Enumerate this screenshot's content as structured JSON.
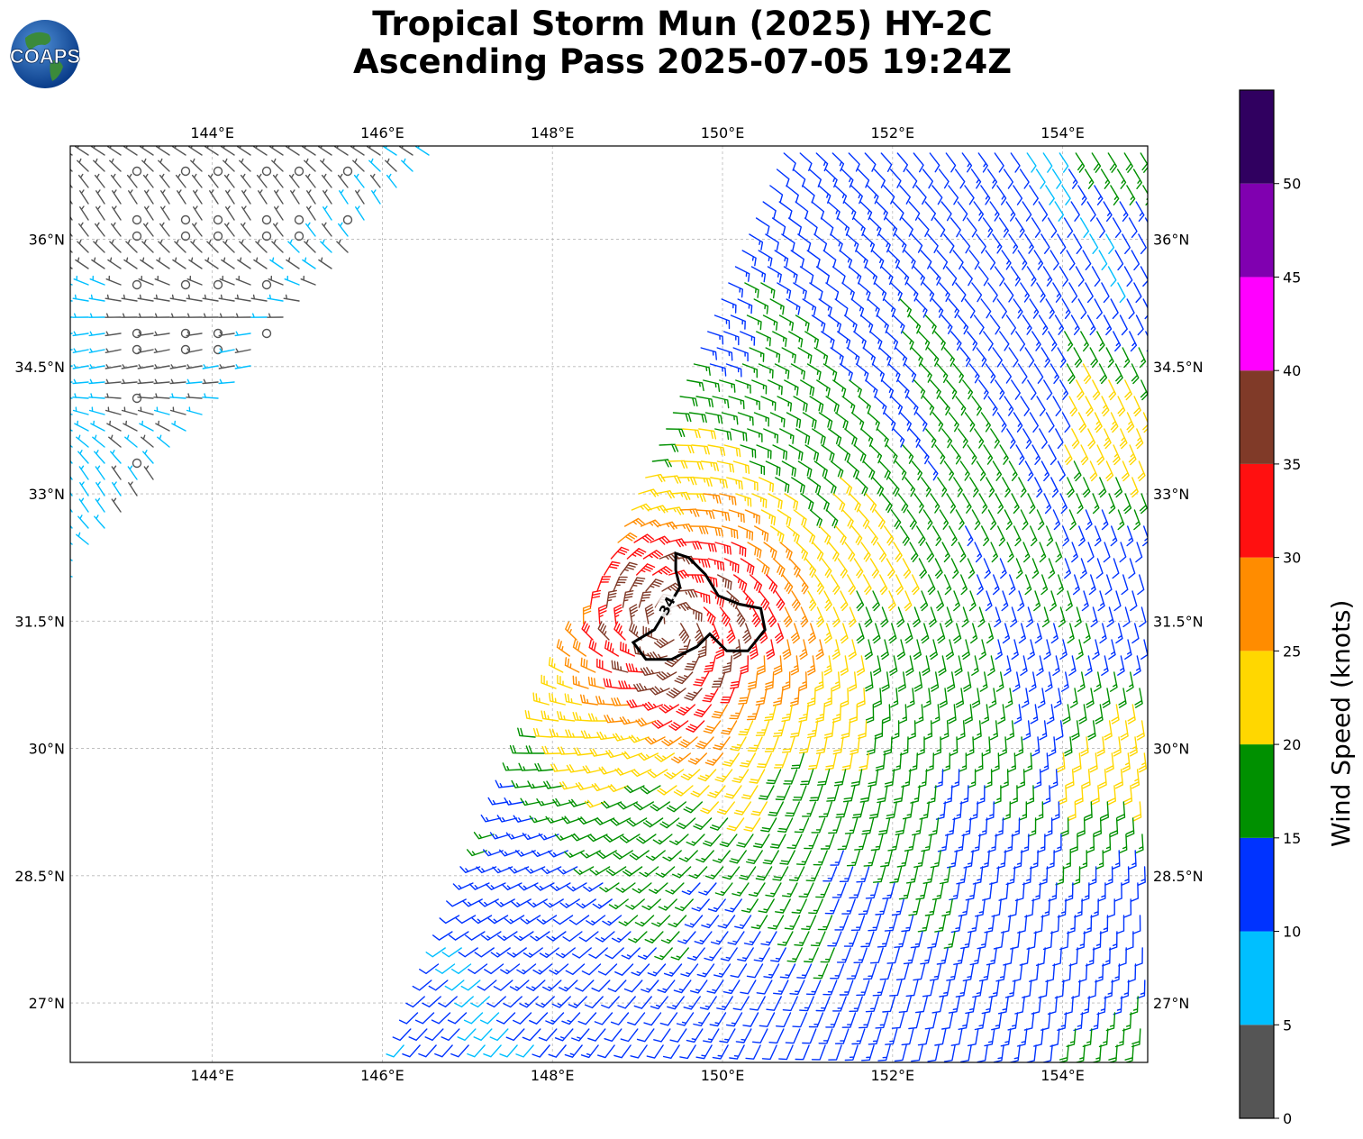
{
  "title_line1": "Tropical Storm Mun (2025) HY-2C",
  "title_line2": "Ascending Pass 2025-07-05 19:24Z",
  "logo_text": "COAPS",
  "map": {
    "lon_range": [
      142.33,
      155.0
    ],
    "lat_range": [
      26.3,
      37.1
    ],
    "lon_ticks": [
      "144°E",
      "146°E",
      "148°E",
      "150°E",
      "152°E",
      "154°E"
    ],
    "lon_tick_values": [
      144,
      146,
      148,
      150,
      152,
      154
    ],
    "lat_ticks": [
      "36°N",
      "34.5°N",
      "33°N",
      "31.5°N",
      "30°N",
      "28.5°N",
      "27°N"
    ],
    "lat_tick_values": [
      36,
      34.5,
      33,
      31.5,
      30,
      28.5,
      27
    ],
    "grid": true,
    "storm_center": [
      149.4,
      31.45
    ],
    "contour_label": "34",
    "contour_lonlat": [
      [
        149.45,
        32.3
      ],
      [
        149.6,
        32.25
      ],
      [
        149.8,
        32.05
      ],
      [
        149.95,
        31.8
      ],
      [
        150.2,
        31.7
      ],
      [
        150.45,
        31.65
      ],
      [
        150.5,
        31.4
      ],
      [
        150.3,
        31.15
      ],
      [
        150.05,
        31.15
      ],
      [
        149.85,
        31.35
      ],
      [
        149.7,
        31.2
      ],
      [
        149.4,
        31.05
      ],
      [
        149.1,
        31.05
      ],
      [
        148.95,
        31.25
      ],
      [
        149.2,
        31.4
      ],
      [
        149.35,
        31.65
      ],
      [
        149.5,
        31.9
      ],
      [
        149.45,
        32.1
      ],
      [
        149.45,
        32.3
      ]
    ]
  },
  "colorbar": {
    "label": "Wind Speed (knots)",
    "tick_labels": [
      "0",
      "5",
      "10",
      "15",
      "20",
      "25",
      "30",
      "35",
      "40",
      "45",
      "50"
    ],
    "bins": [
      {
        "from": 0,
        "to": 5,
        "color": "#555555"
      },
      {
        "from": 5,
        "to": 10,
        "color": "#00bfff"
      },
      {
        "from": 10,
        "to": 15,
        "color": "#0033ff"
      },
      {
        "from": 15,
        "to": 20,
        "color": "#009000"
      },
      {
        "from": 20,
        "to": 25,
        "color": "#ffd700"
      },
      {
        "from": 25,
        "to": 30,
        "color": "#ff8c00"
      },
      {
        "from": 30,
        "to": 35,
        "color": "#ff1010"
      },
      {
        "from": 35,
        "to": 40,
        "color": "#803a28"
      },
      {
        "from": 40,
        "to": 45,
        "color": "#ff00ff"
      },
      {
        "from": 45,
        "to": 50,
        "color": "#8000b0"
      },
      {
        "from": 50,
        "to": 55,
        "color": "#300060"
      }
    ]
  }
}
